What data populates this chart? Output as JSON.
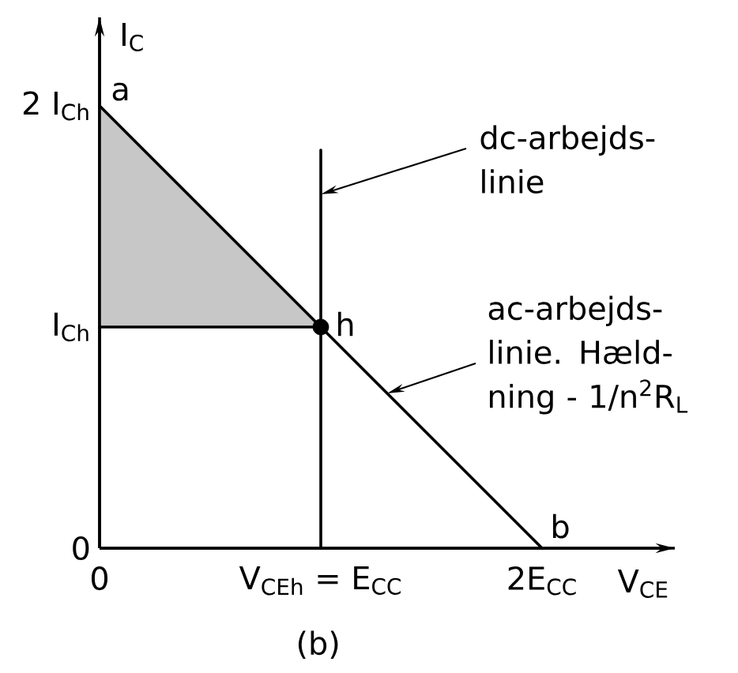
{
  "chart_data": {
    "type": "line",
    "xlabel": "V$_{CE}$",
    "ylabel": "I$_{C}$",
    "xlim": [
      0,
      2.6
    ],
    "ylim": [
      0,
      2.4
    ],
    "xticks": [
      0,
      {
        "value": 1,
        "label": "V$_{CEh}$ = E$_{CC}$"
      },
      {
        "value": 2,
        "label": "2E$_{CC}$"
      }
    ],
    "yticks": [
      0,
      {
        "value": 1,
        "label": "I$_{Ch}$"
      },
      {
        "value": 2,
        "label": "2 I$_{Ch}$"
      }
    ],
    "series": [
      {
        "x": [
          0,
          1,
          2
        ],
        "values": [
          2,
          1,
          0
        ],
        "lower": [
          1,
          1,
          null
        ],
        "upper": [
          2,
          1,
          null
        ],
        "color": "#000000"
      },
      {
        "x": [
          0,
          1
        ],
        "values": [
          1,
          1
        ],
        "color": "#000000"
      },
      {
        "x": [
          1,
          1
        ],
        "values": [
          0,
          1.8
        ],
        "color": "#000000"
      },
      {
        "type": "scatter",
        "x": [
          1
        ],
        "values": [
          1
        ],
        "color": "#000000",
        "marker": "circle"
      }
    ],
    "annotations": [
      {
        "text": "a",
        "x": 0,
        "y": 2
      },
      {
        "text": "h",
        "x": 1,
        "y": 1
      },
      {
        "text": "b",
        "x": 2,
        "y": 0
      },
      {
        "text": "dc-arbejds-linie",
        "x": 1,
        "y": 1.6
      },
      {
        "text": "ac-arbejds-linie. Hæld-ning - 1/n$^{2}$R$_{L}$",
        "x": 1.3,
        "y": 0.7
      },
      "(b)"
    ]
  }
}
